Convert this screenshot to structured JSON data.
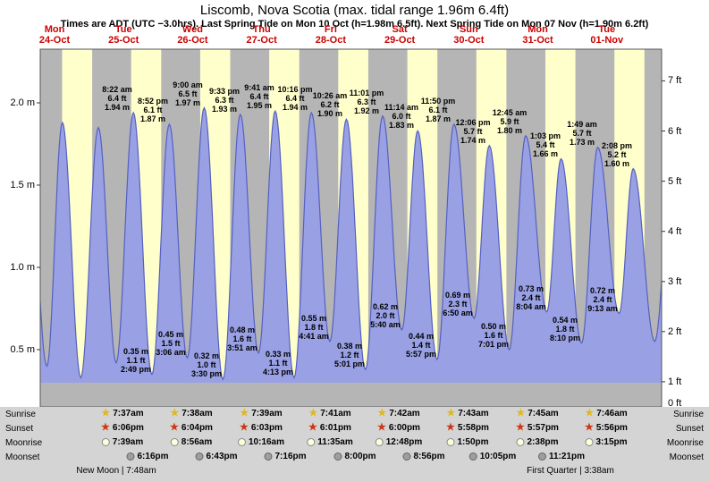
{
  "header": {
    "title": "Liscomb, Nova Scotia (max. tidal range 1.96m 6.4ft)",
    "subtitle": "Times are ADT (UTC −3.0hrs). Last Spring Tide on Mon 10 Oct (h=1.98m 6.5ft). Next Spring Tide on Mon 07 Nov (h=1.90m 6.2ft)"
  },
  "colors": {
    "day_band": "#ffffcc",
    "night_band": "#b5b5b5",
    "below_datum_strip": "#b5b5b5",
    "curve_fill": "#99a1e4",
    "curve_stroke": "#5560c0",
    "date_label_red": "#cc0000",
    "sunrise_star": "#ddb821",
    "sunset_star": "#cc3715",
    "panel_bg": "#d4d4d4"
  },
  "chart_data": {
    "type": "area",
    "title": "Liscomb, Nova Scotia tide curve",
    "x_axis": {
      "days": [
        {
          "dow": "Mon",
          "date": "24-Oct"
        },
        {
          "dow": "Tue",
          "date": "25-Oct"
        },
        {
          "dow": "Wed",
          "date": "26-Oct"
        },
        {
          "dow": "Thu",
          "date": "27-Oct"
        },
        {
          "dow": "Fri",
          "date": "28-Oct"
        },
        {
          "dow": "Sat",
          "date": "29-Oct"
        },
        {
          "dow": "Sun",
          "date": "30-Oct"
        },
        {
          "dow": "Mon",
          "date": "31-Oct"
        },
        {
          "dow": "Tue",
          "date": "01-Nov"
        }
      ]
    },
    "y_axis_left": {
      "unit": "m",
      "labels": [
        "0.5 m",
        "1.0 m",
        "1.5 m",
        "2.0 m"
      ],
      "values": [
        0.5,
        1.0,
        1.5,
        2.0
      ]
    },
    "y_axis_right": {
      "unit": "ft",
      "labels": [
        "0 ft",
        "1 ft",
        "2 ft",
        "3 ft",
        "4 ft",
        "5 ft",
        "6 ft",
        "7 ft"
      ],
      "values": [
        0,
        1,
        2,
        3,
        4,
        5,
        6,
        7
      ]
    },
    "ylim_m": [
      0,
      2.33
    ],
    "grid": false,
    "legend": "none",
    "tides": [
      {
        "t": -4.3,
        "m": 1.85,
        "type": "high",
        "estimated": true
      },
      {
        "t": 2.3,
        "m": 0.4,
        "type": "low",
        "estimated": true
      },
      {
        "t": 7.7,
        "m": 1.88,
        "type": "high",
        "estimated": true
      },
      {
        "t": 14.1,
        "m": 0.33,
        "type": "low",
        "estimated": true
      },
      {
        "t": 20.2,
        "m": 1.85,
        "type": "high",
        "estimated": true
      },
      {
        "t": 26.4,
        "m": 0.42,
        "type": "low",
        "estimated": true
      },
      {
        "t": 32.37,
        "m": 1.94,
        "type": "high",
        "lines": [
          "8:22 am",
          "6.4 ft",
          "1.94 m"
        ]
      },
      {
        "t": 38.82,
        "m": 0.35,
        "type": "low",
        "lines": [
          "0.35 m",
          "1.1 ft",
          "2:49 pm"
        ]
      },
      {
        "t": 44.87,
        "m": 1.87,
        "type": "high",
        "lines": [
          "8:52 pm",
          "6.1 ft",
          "1.87 m"
        ]
      },
      {
        "t": 51.1,
        "m": 0.45,
        "type": "low",
        "lines": [
          "0.45 m",
          "1.5 ft",
          "3:06 am"
        ]
      },
      {
        "t": 57.0,
        "m": 1.97,
        "type": "high",
        "lines": [
          "9:00 am",
          "6.5 ft",
          "1.97 m"
        ]
      },
      {
        "t": 63.5,
        "m": 0.32,
        "type": "low",
        "lines": [
          "0.32 m",
          "1.0 ft",
          "3:30 pm"
        ]
      },
      {
        "t": 69.55,
        "m": 1.93,
        "type": "high",
        "lines": [
          "9:33 pm",
          "6.3 ft",
          "1.93 m"
        ]
      },
      {
        "t": 75.85,
        "m": 0.48,
        "type": "low",
        "lines": [
          "0.48 m",
          "1.6 ft",
          "3:51 am"
        ]
      },
      {
        "t": 81.68,
        "m": 1.95,
        "type": "high",
        "lines": [
          "9:41 am",
          "6.4 ft",
          "1.95 m"
        ]
      },
      {
        "t": 88.22,
        "m": 0.33,
        "type": "low",
        "lines": [
          "0.33 m",
          "1.1 ft",
          "4:13 pm"
        ]
      },
      {
        "t": 94.27,
        "m": 1.94,
        "type": "high",
        "lines": [
          "10:16 pm",
          "6.4 ft",
          "1.94 m"
        ]
      },
      {
        "t": 100.68,
        "m": 0.55,
        "type": "low",
        "lines": [
          "0.55 m",
          "1.8 ft",
          "4:41 am"
        ]
      },
      {
        "t": 106.43,
        "m": 1.9,
        "type": "high",
        "lines": [
          "10:26 am",
          "6.2 ft",
          "1.90 m"
        ]
      },
      {
        "t": 113.02,
        "m": 0.38,
        "type": "low",
        "lines": [
          "0.38 m",
          "1.2 ft",
          "5:01 pm"
        ]
      },
      {
        "t": 119.02,
        "m": 1.92,
        "type": "high",
        "lines": [
          "11:01 pm",
          "6.3 ft",
          "1.92 m"
        ]
      },
      {
        "t": 125.67,
        "m": 0.62,
        "type": "low",
        "lines": [
          "0.62 m",
          "2.0 ft",
          "5:40 am"
        ]
      },
      {
        "t": 131.23,
        "m": 1.83,
        "type": "high",
        "lines": [
          "11:14 am",
          "6.0 ft",
          "1.83 m"
        ]
      },
      {
        "t": 137.95,
        "m": 0.44,
        "type": "low",
        "lines": [
          "0.44 m",
          "1.4 ft",
          "5:57 pm"
        ]
      },
      {
        "t": 143.83,
        "m": 1.87,
        "type": "high",
        "lines": [
          "11:50 pm",
          "6.1 ft",
          "1.87 m"
        ]
      },
      {
        "t": 150.83,
        "m": 0.69,
        "type": "low",
        "lines": [
          "0.69 m",
          "2.3 ft",
          "6:50 am"
        ]
      },
      {
        "t": 156.1,
        "m": 1.74,
        "type": "high",
        "lines": [
          "12:06 pm",
          "5.7 ft",
          "1.74 m"
        ]
      },
      {
        "t": 163.02,
        "m": 0.5,
        "type": "low",
        "lines": [
          "0.50 m",
          "1.6 ft",
          "7:01 pm"
        ]
      },
      {
        "t": 168.75,
        "m": 1.8,
        "type": "high",
        "lines": [
          "12:45 am",
          "5.9 ft",
          "1.80 m"
        ]
      },
      {
        "t": 176.07,
        "m": 0.73,
        "type": "low",
        "lines": [
          "0.73 m",
          "2.4 ft",
          "8:04 am"
        ]
      },
      {
        "t": 181.05,
        "m": 1.66,
        "type": "high",
        "lines": [
          "1:03 pm",
          "5.4 ft",
          "1.66 m"
        ]
      },
      {
        "t": 188.17,
        "m": 0.54,
        "type": "low",
        "lines": [
          "0.54 m",
          "1.8 ft",
          "8:10 pm"
        ]
      },
      {
        "t": 193.82,
        "m": 1.73,
        "type": "high",
        "lines": [
          "1:49 am",
          "5.7 ft",
          "1.73 m"
        ]
      },
      {
        "t": 201.22,
        "m": 0.72,
        "type": "low",
        "lines": [
          "0.72 m",
          "2.4 ft",
          "9:13 am"
        ]
      },
      {
        "t": 206.13,
        "m": 1.6,
        "type": "high",
        "lines": [
          "2:08 pm",
          "5.2 ft",
          "1.60 m"
        ]
      },
      {
        "t": 213.6,
        "m": 0.55,
        "type": "low",
        "estimated": true
      },
      {
        "t": 219.8,
        "m": 1.68,
        "type": "high",
        "estimated": true
      }
    ]
  },
  "astro": {
    "rows": [
      {
        "label": "Sunrise",
        "icon": "sunrise-star",
        "times": [
          "7:37am",
          "7:38am",
          "7:39am",
          "7:41am",
          "7:42am",
          "7:43am",
          "7:45am",
          "7:46am"
        ]
      },
      {
        "label": "Sunset",
        "icon": "sunset-star",
        "times": [
          "6:06pm",
          "6:04pm",
          "6:03pm",
          "6:01pm",
          "6:00pm",
          "5:58pm",
          "5:57pm",
          "5:56pm"
        ]
      },
      {
        "label": "Moonrise",
        "icon": "moonrise-circle",
        "times": [
          "7:39am",
          "8:56am",
          "10:16am",
          "11:35am",
          "12:48pm",
          "1:50pm",
          "2:38pm",
          "3:15pm"
        ]
      },
      {
        "label": "Moonset",
        "icon": "moonset-circle",
        "times": [
          "6:16pm",
          "6:43pm",
          "7:16pm",
          "8:00pm",
          "8:56pm",
          "10:05pm",
          "11:21pm"
        ]
      }
    ],
    "footer_left": "New Moon | 7:48am",
    "footer_right": "First Quarter | 3:38am"
  }
}
